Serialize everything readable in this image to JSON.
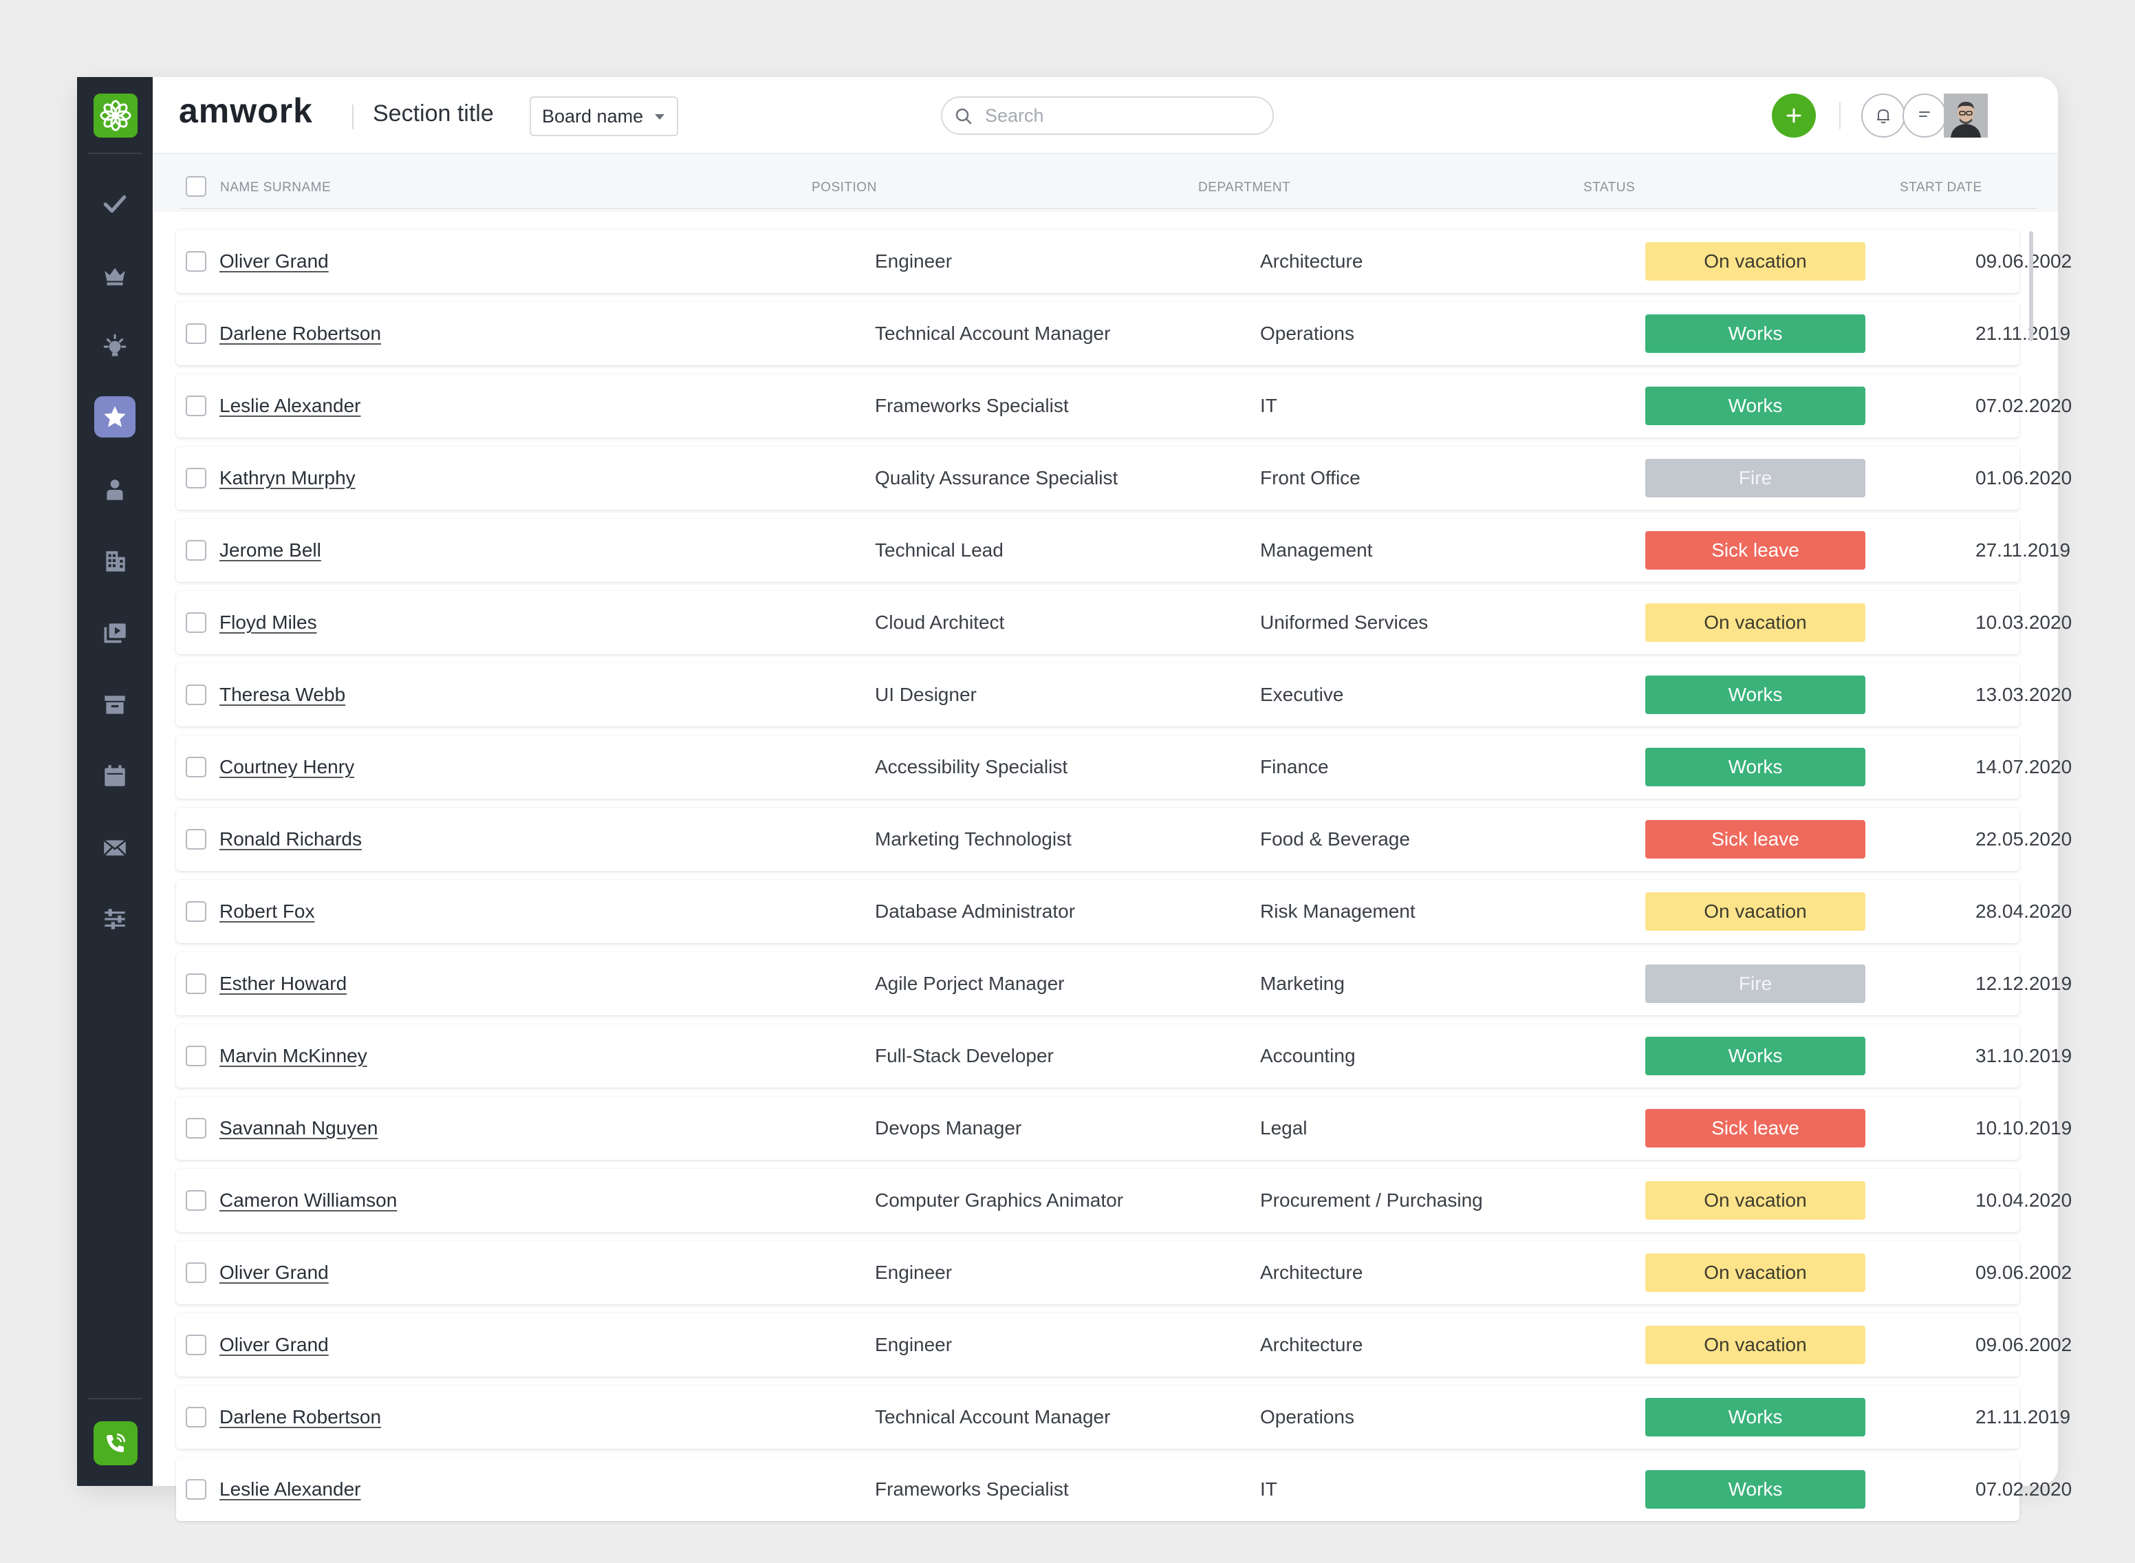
{
  "app": {
    "brand": "amwork",
    "section_title": "Section title",
    "board_name": "Board name",
    "search_placeholder": "Search"
  },
  "sidebar": {
    "items": [
      {
        "icon": "check-icon",
        "active": false
      },
      {
        "icon": "crown-icon",
        "active": false
      },
      {
        "icon": "bulb-icon",
        "active": false
      },
      {
        "icon": "star-icon",
        "active": true
      },
      {
        "icon": "person-icon",
        "active": false
      },
      {
        "icon": "building-icon",
        "active": false
      },
      {
        "icon": "media-icon",
        "active": false
      },
      {
        "icon": "archive-icon",
        "active": false
      },
      {
        "icon": "calendar-icon",
        "active": false
      },
      {
        "icon": "mail-icon",
        "active": false
      },
      {
        "icon": "sliders-icon",
        "active": false
      }
    ]
  },
  "table": {
    "headers": {
      "name": "NAME SURNAME",
      "position": "POSITION",
      "department": "DEPARTMENT",
      "status": "STATUS",
      "start_date": "START DATE"
    },
    "rows": [
      {
        "name": "Oliver Grand",
        "position": "Engineer",
        "department": "Architecture",
        "status": "On vacation",
        "date": "09.06.2002"
      },
      {
        "name": "Darlene Robertson",
        "position": "Technical Account Manager",
        "department": "Operations",
        "status": "Works",
        "date": "21.11.2019"
      },
      {
        "name": "Leslie Alexander",
        "position": "Frameworks Specialist",
        "department": "IT",
        "status": "Works",
        "date": "07.02.2020"
      },
      {
        "name": "Kathryn Murphy",
        "position": "Quality Assurance Specialist",
        "department": "Front Office",
        "status": "Fire",
        "date": "01.06.2020"
      },
      {
        "name": "Jerome Bell",
        "position": "Technical Lead",
        "department": "Management",
        "status": "Sick leave",
        "date": "27.11.2019"
      },
      {
        "name": "Floyd Miles",
        "position": "Cloud Architect",
        "department": "Uniformed Services",
        "status": "On vacation",
        "date": "10.03.2020"
      },
      {
        "name": "Theresa Webb",
        "position": "UI Designer",
        "department": "Executive",
        "status": "Works",
        "date": "13.03.2020"
      },
      {
        "name": "Courtney Henry",
        "position": "Accessibility Specialist",
        "department": "Finance",
        "status": "Works",
        "date": "14.07.2020"
      },
      {
        "name": "Ronald Richards",
        "position": "Marketing Technologist",
        "department": "Food & Beverage",
        "status": "Sick leave",
        "date": "22.05.2020"
      },
      {
        "name": "Robert Fox",
        "position": "Database Administrator",
        "department": "Risk Management",
        "status": "On vacation",
        "date": "28.04.2020"
      },
      {
        "name": "Esther Howard",
        "position": "Agile Porject Manager",
        "department": "Marketing",
        "status": "Fire",
        "date": "12.12.2019"
      },
      {
        "name": "Marvin McKinney",
        "position": "Full-Stack Developer",
        "department": "Accounting",
        "status": "Works",
        "date": "31.10.2019"
      },
      {
        "name": "Savannah Nguyen",
        "position": "Devops Manager",
        "department": "Legal",
        "status": "Sick leave",
        "date": "10.10.2019"
      },
      {
        "name": "Cameron Williamson",
        "position": "Computer Graphics Animator",
        "department": "Procurement / Purchasing",
        "status": "On vacation",
        "date": "10.04.2020"
      },
      {
        "name": "Oliver Grand",
        "position": "Engineer",
        "department": "Architecture",
        "status": "On vacation",
        "date": "09.06.2002"
      },
      {
        "name": "Oliver Grand",
        "position": "Engineer",
        "department": "Architecture",
        "status": "On vacation",
        "date": "09.06.2002"
      },
      {
        "name": "Darlene Robertson",
        "position": "Technical Account Manager",
        "department": "Operations",
        "status": "Works",
        "date": "21.11.2019"
      },
      {
        "name": "Leslie Alexander",
        "position": "Frameworks Specialist",
        "department": "IT",
        "status": "Works",
        "date": "07.02.2020"
      }
    ]
  },
  "status_colors": {
    "On vacation": {
      "bg": "#fde48a",
      "fg": "#3d3b2e"
    },
    "Works": {
      "bg": "#3ab27a",
      "fg": "#ffffff"
    },
    "Fire": {
      "bg": "#c3c7ce",
      "fg": "#f4f5f7"
    },
    "Sick leave": {
      "bg": "#ef6a5d",
      "fg": "#ffffff"
    }
  },
  "colors": {
    "accent_green": "#4caf20",
    "sidebar_bg": "#242a33",
    "active_item": "#7f88c8"
  }
}
